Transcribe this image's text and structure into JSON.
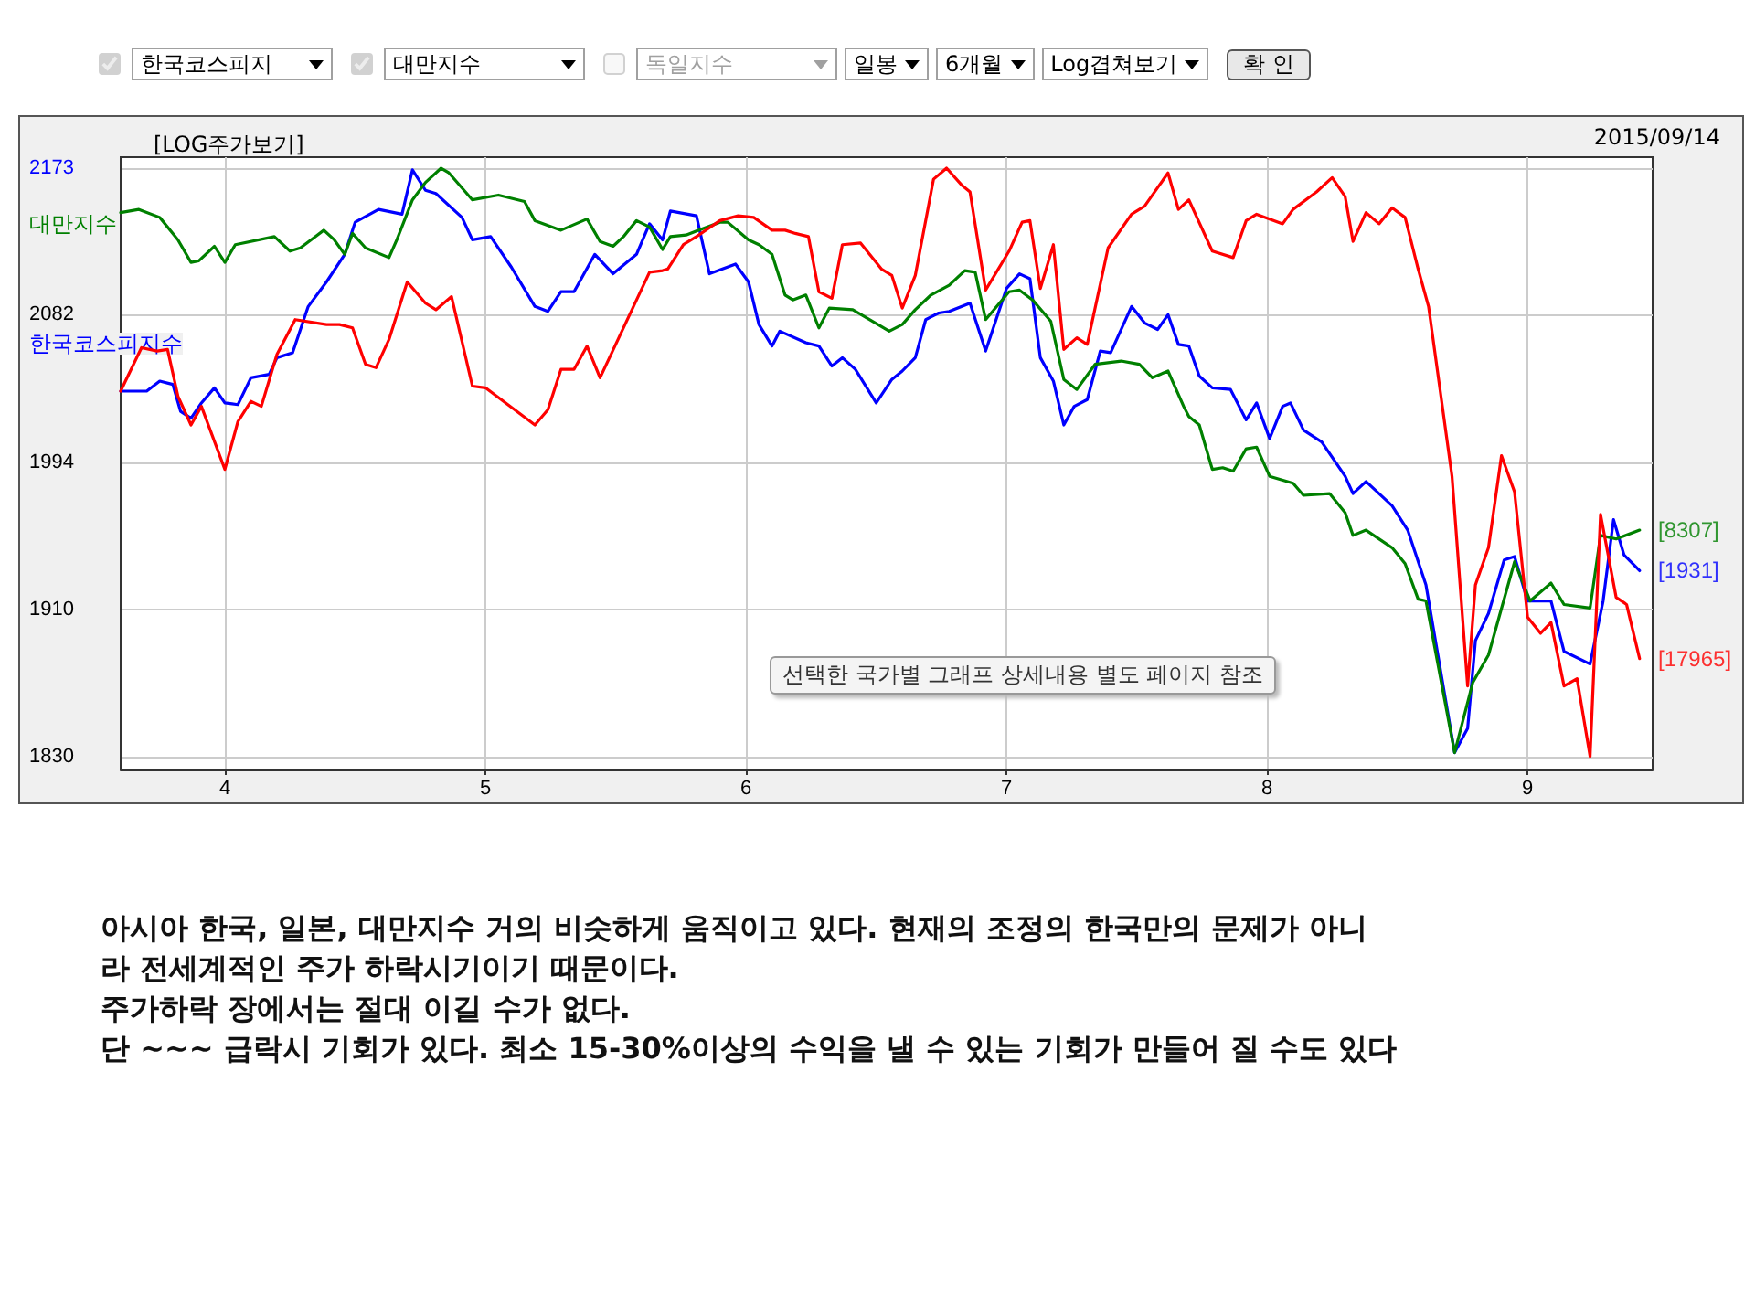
{
  "chart_data": {
    "type": "line",
    "title": "[LOG주가보기]",
    "xlim": [
      3.6,
      9.48
    ],
    "xticks": [
      4,
      5,
      6,
      7,
      8,
      9
    ],
    "ylim": [
      1823,
      2180
    ],
    "yticks": [
      1830,
      1910,
      1994,
      2082,
      2173
    ],
    "log": true,
    "grid": true,
    "series": [
      {
        "name": "한국코스피지수",
        "color": "#0000ff",
        "x": [
          3.6,
          3.7,
          3.75,
          3.8,
          3.83,
          3.87,
          3.91,
          3.96,
          4.0,
          4.05,
          4.1,
          4.17,
          4.2,
          4.26,
          4.32,
          4.39,
          4.46,
          4.5,
          4.59,
          4.68,
          4.72,
          4.77,
          4.81,
          4.91,
          4.95,
          5.02,
          5.1,
          5.19,
          5.24,
          5.29,
          5.34,
          5.42,
          5.49,
          5.58,
          5.63,
          5.68,
          5.71,
          5.81,
          5.86,
          5.96,
          6.01,
          6.05,
          6.1,
          6.13,
          6.23,
          6.28,
          6.33,
          6.37,
          6.42,
          6.5,
          6.56,
          6.6,
          6.65,
          6.69,
          6.74,
          6.78,
          6.86,
          6.92,
          7.0,
          7.05,
          7.09,
          7.13,
          7.18,
          7.22,
          7.26,
          7.31,
          7.36,
          7.4,
          7.48,
          7.53,
          7.58,
          7.62,
          7.66,
          7.7,
          7.74,
          7.79,
          7.86,
          7.92,
          7.96,
          8.01,
          8.06,
          8.09,
          8.14,
          8.21,
          8.3,
          8.33,
          8.38,
          8.48,
          8.54,
          8.61,
          8.72,
          8.77,
          8.8,
          8.85,
          8.91,
          8.95,
          9.0,
          9.09,
          9.14,
          9.24,
          9.29,
          9.33,
          9.37,
          9.43
        ],
        "values": [
          2036,
          2036,
          2042,
          2040,
          2024,
          2020,
          2029,
          2038,
          2029,
          2028,
          2044,
          2046,
          2056,
          2059,
          2087,
          2102,
          2119,
          2139,
          2147,
          2144,
          2172,
          2159,
          2157,
          2142,
          2128,
          2130,
          2111,
          2087,
          2084,
          2096,
          2096,
          2119,
          2107,
          2119,
          2138,
          2128,
          2146,
          2143,
          2107,
          2113,
          2102,
          2076,
          2063,
          2072,
          2065,
          2063,
          2051,
          2056,
          2049,
          2029,
          2043,
          2048,
          2056,
          2079,
          2083,
          2084,
          2089,
          2060,
          2098,
          2107,
          2104,
          2056,
          2042,
          2016,
          2027,
          2031,
          2060,
          2059,
          2087,
          2077,
          2073,
          2082,
          2064,
          2063,
          2045,
          2038,
          2037,
          2019,
          2029,
          2008,
          2027,
          2029,
          2013,
          2006,
          1986,
          1976,
          1983,
          1969,
          1955,
          1924,
          1832,
          1845,
          1893,
          1908,
          1938,
          1940,
          1915,
          1915,
          1887,
          1880,
          1915,
          1961,
          1941,
          1932
        ],
        "value_labels": [
          null,
          null,
          null,
          null,
          null,
          null,
          null,
          null,
          null,
          null,
          null,
          null,
          null,
          null,
          null,
          null,
          null,
          null,
          null,
          null,
          null,
          null,
          null,
          null,
          null,
          null,
          null,
          null,
          null,
          null,
          null,
          null,
          null,
          null,
          null,
          null,
          null,
          null,
          null,
          null,
          null,
          null,
          null,
          null,
          null,
          null,
          null,
          null,
          null,
          null,
          null,
          null,
          null,
          null,
          null,
          null,
          null,
          null,
          null,
          null,
          null,
          null,
          null,
          null,
          null,
          null,
          null,
          null,
          null,
          null,
          null,
          null,
          null,
          null,
          null,
          null,
          null,
          null,
          null,
          null,
          null,
          null,
          null,
          null,
          null,
          null,
          null,
          null,
          null,
          null,
          null,
          null,
          null,
          null,
          null,
          null,
          null,
          null,
          null,
          null,
          null,
          null,
          null,
          null
        ]
      },
      {
        "name": "대만지수",
        "color": "#008000",
        "x": [
          3.6,
          3.67,
          3.75,
          3.82,
          3.87,
          3.9,
          3.96,
          4.0,
          4.04,
          4.19,
          4.25,
          4.29,
          4.38,
          4.42,
          4.46,
          4.49,
          4.54,
          4.63,
          4.66,
          4.72,
          4.77,
          4.83,
          4.86,
          4.95,
          5.05,
          5.15,
          5.19,
          5.29,
          5.39,
          5.44,
          5.49,
          5.53,
          5.58,
          5.63,
          5.68,
          5.71,
          5.77,
          5.9,
          5.93,
          6.01,
          6.05,
          6.1,
          6.15,
          6.18,
          6.23,
          6.28,
          6.32,
          6.41,
          6.55,
          6.6,
          6.65,
          6.71,
          6.78,
          6.84,
          6.88,
          6.92,
          7.01,
          7.05,
          7.1,
          7.17,
          7.22,
          7.27,
          7.34,
          7.44,
          7.51,
          7.56,
          7.62,
          7.68,
          7.7,
          7.74,
          7.79,
          7.83,
          7.87,
          7.92,
          7.96,
          8.01,
          8.1,
          8.14,
          8.24,
          8.3,
          8.33,
          8.38,
          8.48,
          8.53,
          8.58,
          8.61,
          8.72,
          8.79,
          8.85,
          8.95,
          9.01,
          9.09,
          9.14,
          9.24,
          9.28,
          9.34,
          9.43
        ],
        "values": [
          2145,
          2147,
          2142,
          2128,
          2114,
          2115,
          2124,
          2114,
          2125,
          2130,
          2121,
          2123,
          2134,
          2128,
          2119,
          2132,
          2123,
          2117,
          2128,
          2153,
          2164,
          2173,
          2170,
          2153,
          2156,
          2152,
          2140,
          2134,
          2141,
          2127,
          2124,
          2130,
          2140,
          2136,
          2122,
          2130,
          2131,
          2139,
          2139,
          2128,
          2125,
          2119,
          2094,
          2091,
          2094,
          2074,
          2086,
          2085,
          2072,
          2076,
          2085,
          2094,
          2100,
          2109,
          2108,
          2079,
          2096,
          2097,
          2091,
          2078,
          2043,
          2037,
          2052,
          2054,
          2052,
          2044,
          2048,
          2027,
          2021,
          2016,
          1990,
          1991,
          1989,
          2002,
          2003,
          1986,
          1982,
          1975,
          1976,
          1965,
          1952,
          1955,
          1945,
          1936,
          1916,
          1915,
          1832,
          1870,
          1885,
          1937,
          1915,
          1925,
          1913,
          1911,
          1952,
          1950,
          1955
        ],
        "value_labels": [
          null,
          null,
          null,
          null,
          null,
          null,
          null,
          null,
          null,
          null,
          null,
          null,
          null,
          null,
          null,
          null,
          null,
          null,
          null,
          null,
          null,
          null,
          null,
          null,
          null,
          null,
          null,
          null,
          null,
          null,
          null,
          null,
          null,
          null,
          null,
          null,
          null,
          null,
          null,
          null,
          null,
          null,
          null,
          null,
          null,
          null,
          null,
          null,
          null,
          null,
          null,
          null,
          null,
          null,
          null,
          null,
          null,
          null,
          null,
          null,
          null,
          null,
          null,
          null,
          null,
          null,
          null,
          null,
          null,
          null,
          null,
          null,
          null,
          null,
          null,
          null,
          null,
          null,
          null,
          null,
          null,
          null,
          null,
          null,
          null,
          null,
          null,
          null,
          null,
          null,
          null,
          null,
          null,
          null,
          null,
          null,
          null
        ]
      },
      {
        "color": "#ff0000",
        "x": [
          3.6,
          3.68,
          3.74,
          3.78,
          3.82,
          3.87,
          3.91,
          4.0,
          4.05,
          4.1,
          4.14,
          4.2,
          4.27,
          4.39,
          4.44,
          4.49,
          4.54,
          4.58,
          4.63,
          4.7,
          4.77,
          4.81,
          4.87,
          4.95,
          5.0,
          5.19,
          5.24,
          5.29,
          5.34,
          5.39,
          5.44,
          5.63,
          5.68,
          5.7,
          5.76,
          5.81,
          5.9,
          5.97,
          6.03,
          6.1,
          6.15,
          6.19,
          6.24,
          6.28,
          6.33,
          6.37,
          6.44,
          6.52,
          6.56,
          6.6,
          6.65,
          6.72,
          6.77,
          6.83,
          6.86,
          6.92,
          7.01,
          7.06,
          7.09,
          7.13,
          7.18,
          7.22,
          7.27,
          7.31,
          7.39,
          7.48,
          7.53,
          7.62,
          7.66,
          7.7,
          7.79,
          7.87,
          7.92,
          7.96,
          8.06,
          8.1,
          8.19,
          8.25,
          8.3,
          8.33,
          8.38,
          8.43,
          8.48,
          8.53,
          8.58,
          8.62,
          8.71,
          8.77,
          8.8,
          8.85,
          8.9,
          8.95,
          9.0,
          9.05,
          9.09,
          9.14,
          9.19,
          9.24,
          9.28,
          9.34,
          9.38,
          9.43
        ],
        "values": [
          2036,
          2062,
          2060,
          2061,
          2033,
          2016,
          2027,
          1990,
          2018,
          2030,
          2027,
          2058,
          2079,
          2076,
          2076,
          2074,
          2052,
          2050,
          2067,
          2102,
          2089,
          2085,
          2093,
          2039,
          2038,
          2016,
          2025,
          2049,
          2049,
          2063,
          2044,
          2108,
          2109,
          2110,
          2125,
          2130,
          2140,
          2143,
          2142,
          2134,
          2134,
          2132,
          2130,
          2096,
          2092,
          2125,
          2126,
          2110,
          2106,
          2086,
          2106,
          2166,
          2173,
          2162,
          2158,
          2097,
          2121,
          2139,
          2140,
          2098,
          2125,
          2061,
          2068,
          2064,
          2123,
          2144,
          2149,
          2170,
          2147,
          2153,
          2121,
          2117,
          2140,
          2144,
          2138,
          2147,
          2158,
          2167,
          2155,
          2127,
          2145,
          2138,
          2148,
          2142,
          2110,
          2087,
          1986,
          1868,
          1924,
          1945,
          1998,
          1977,
          1906,
          1897,
          1903,
          1868,
          1872,
          1830,
          1964,
          1917,
          1913,
          1883
        ],
        "value_labels": [
          null,
          null,
          null,
          null,
          null,
          null,
          null,
          null,
          null,
          null,
          null,
          null,
          null,
          null,
          null,
          null,
          null,
          null,
          null,
          null,
          null,
          null,
          null,
          null,
          null,
          null,
          null,
          null,
          null,
          null,
          null,
          null,
          null,
          null,
          null,
          null,
          null,
          null,
          null,
          null,
          null,
          null,
          null,
          null,
          null,
          null,
          null,
          null,
          null,
          null,
          null,
          null,
          null,
          null,
          null,
          null,
          null,
          null,
          null,
          null,
          null,
          null,
          null,
          null,
          null,
          null,
          null,
          null,
          null,
          null,
          null,
          null,
          null,
          null,
          null,
          null,
          null,
          null,
          null,
          null,
          null,
          null,
          null,
          null,
          null,
          null,
          null,
          null,
          null,
          null,
          null,
          null,
          null,
          null,
          null,
          null,
          null,
          null,
          null,
          null,
          null,
          null
        ]
      }
    ],
    "annotations": [
      "2015/09/14",
      "선택한 국가별 그래프 상세내용 별도 페이지 참조",
      "아시아 한국, 일본, 대만지수 거의 비슷하게 움직이고 있다. 현재의 조정의 한국만의 문제가 아니",
      "라 전세계적인 주가 하락시기이기 때문이다.",
      "주가하락 장에서는 절대 이길 수가 없다.",
      "단 ~~~ 급락시 기회가 있다. 최소 15-30%이상의 수익을 낼 수 있는 기회가 만들어 질 수도 있다",
      "한국코스피지",
      "대만지수",
      "독일지수",
      "일봉",
      "6개월",
      "Log겹쳐보기",
      "확 인",
      "[1931]",
      "[8307]",
      "[17965]"
    ]
  }
}
